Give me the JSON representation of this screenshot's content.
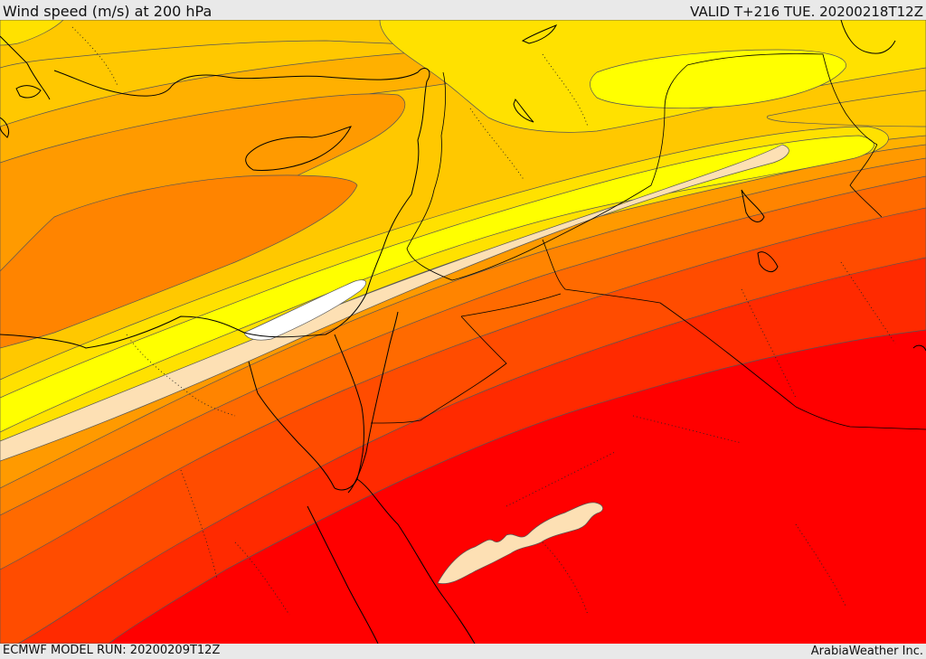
{
  "header": {
    "title": "Wind speed (m/s) at 200 hPa",
    "valid": "VALID T+216 TUE. 20200218T12Z"
  },
  "footer": {
    "model_run": "ECMWF MODEL RUN: 20200209T12Z",
    "credit": "ArabiaWeather Inc."
  },
  "colors": {
    "jet_core": "#ffffff",
    "peach": "#fde0b4",
    "bright_yellow": "#ffff00",
    "yellow": "#ffe100",
    "amber": "#ffc800",
    "light_orange": "#ffb000",
    "orange": "#ff9a00",
    "deep_orange": "#ff8400",
    "orange_red": "#ff6a00",
    "red_orange": "#ff4c00",
    "red": "#ff2a00",
    "pure_red": "#ff0000",
    "contour": "#555555",
    "coast": "#000000"
  }
}
